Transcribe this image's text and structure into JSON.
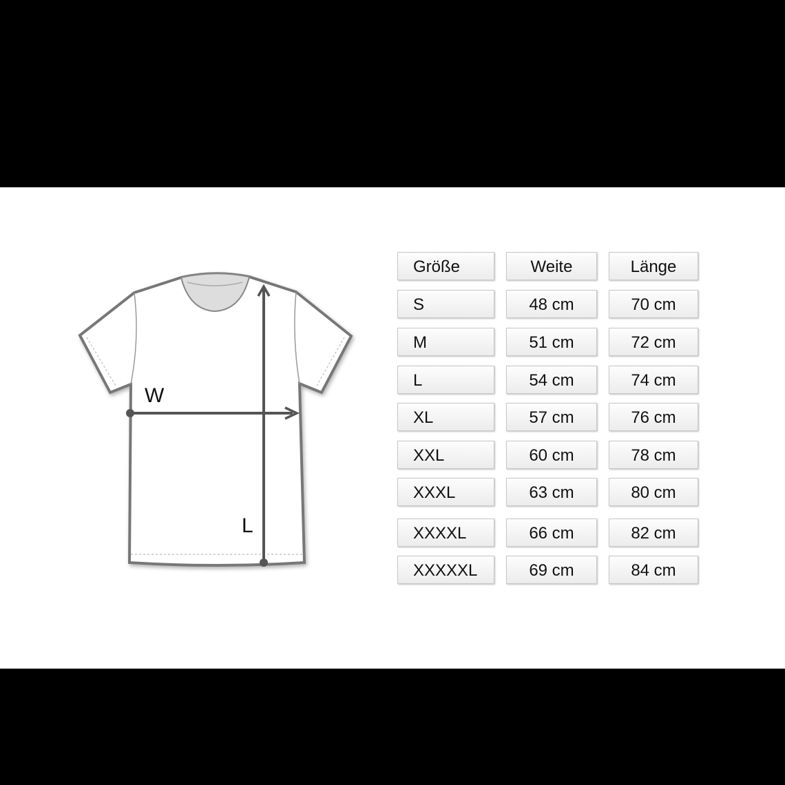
{
  "diagram": {
    "width_label": "W",
    "length_label": "L"
  },
  "table": {
    "headers": [
      "Größe",
      "Weite",
      "Länge"
    ],
    "rows": [
      [
        "S",
        "48 cm",
        "70 cm"
      ],
      [
        "M",
        "51 cm",
        "72 cm"
      ],
      [
        "L",
        "54 cm",
        "74 cm"
      ],
      [
        "XL",
        "57 cm",
        "76 cm"
      ],
      [
        "XXL",
        "60 cm",
        "78 cm"
      ],
      [
        "XXXL",
        "63 cm",
        "80 cm"
      ],
      [
        "XXXXL",
        "66 cm",
        "82 cm"
      ],
      [
        "XXXXXL",
        "69 cm",
        "84 cm"
      ]
    ]
  }
}
